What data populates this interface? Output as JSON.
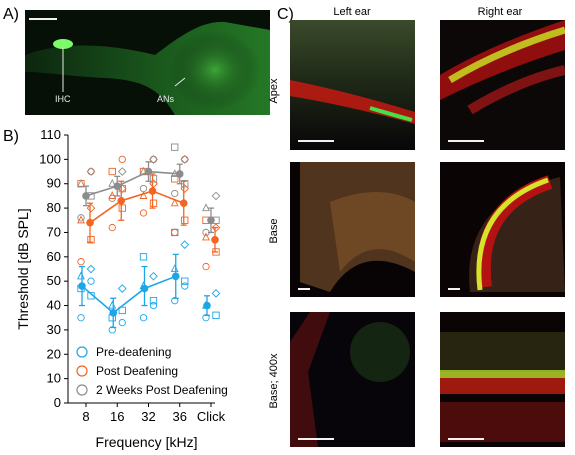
{
  "panels": {
    "a": {
      "letter": "A)",
      "labels": [
        "IHC",
        "ANs"
      ]
    },
    "b": {
      "letter": "B)"
    },
    "c": {
      "letter": "C)",
      "columns": [
        "Left ear",
        "Right ear"
      ],
      "rows": [
        "Apex",
        "Base",
        "Base; 400x"
      ]
    }
  },
  "colors": {
    "pre": "#1ba6e8",
    "post": "#f26522",
    "weeks2": "#8c8c8c"
  },
  "chart_data": {
    "type": "scatter",
    "title": "",
    "xlabel": "Frequency [kHz]",
    "ylabel": "Threshold [dB SPL]",
    "categories": [
      "8",
      "16",
      "32",
      "36",
      "Click"
    ],
    "ylim": [
      0,
      110
    ],
    "yticks": [
      0,
      10,
      20,
      30,
      40,
      50,
      60,
      70,
      80,
      90,
      100,
      110
    ],
    "legend_position": "bottom-left",
    "series": [
      {
        "name": "Pre-deafening",
        "color": "#1ba6e8",
        "mean": [
          48,
          37,
          47,
          52,
          40
        ],
        "err_low": [
          8,
          6,
          7,
          9,
          4
        ],
        "err_high": [
          8,
          6,
          9,
          9,
          4
        ],
        "individual": [
          [
            35,
            44,
            52,
            55,
            47,
            50
          ],
          [
            30,
            38,
            40,
            47,
            35,
            33
          ],
          [
            35,
            42,
            48,
            52,
            60,
            40
          ],
          [
            42,
            50,
            55,
            65,
            70,
            48
          ],
          [
            35,
            36,
            40,
            45
          ]
        ]
      },
      {
        "name": "Post Deafening",
        "color": "#f26522",
        "mean": [
          74,
          83,
          87,
          82,
          67
        ],
        "err_low": [
          8,
          8,
          7,
          9,
          5
        ],
        "err_high": [
          8,
          8,
          7,
          9,
          5
        ],
        "individual": [
          [
            58,
            67,
            75,
            80,
            90,
            95
          ],
          [
            72,
            80,
            85,
            88,
            95,
            100
          ],
          [
            78,
            82,
            85,
            90,
            95,
            100
          ],
          [
            70,
            75,
            82,
            88,
            92,
            100
          ],
          [
            56,
            62,
            68,
            72,
            75
          ]
        ]
      },
      {
        "name": "2 Weeks Post Deafening",
        "color": "#8c8c8c",
        "mean": [
          85,
          89,
          95,
          94,
          75
        ],
        "err_low": [
          4,
          4,
          4,
          4,
          5
        ],
        "err_high": [
          4,
          4,
          4,
          4,
          5
        ],
        "individual": [
          [
            76,
            85,
            90,
            95
          ],
          [
            84,
            88,
            90,
            95
          ],
          [
            88,
            92,
            95,
            100
          ],
          [
            86,
            90,
            94,
            100,
            105
          ],
          [
            70,
            75,
            80,
            85
          ]
        ]
      }
    ]
  }
}
